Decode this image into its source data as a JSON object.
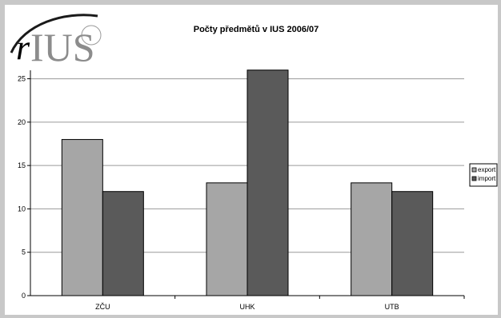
{
  "logo": {
    "text_r": "r",
    "text_ius": "IUS",
    "color_r": "#1a1a1a",
    "color_ius": "#8c8c8c"
  },
  "chart_data": {
    "type": "bar",
    "title": "Počty předmětů v IUS 2006/07",
    "categories": [
      "ZČU",
      "UHK",
      "UTB"
    ],
    "series": [
      {
        "name": "export",
        "values": [
          18,
          13,
          13
        ],
        "color": "#a6a6a6"
      },
      {
        "name": "import",
        "values": [
          12,
          26,
          12
        ],
        "color": "#5a5a5a"
      }
    ],
    "ylim": [
      0,
      28
    ],
    "yticks": [
      0,
      5,
      10,
      15,
      20,
      25
    ],
    "grid": true,
    "legend": "right"
  }
}
